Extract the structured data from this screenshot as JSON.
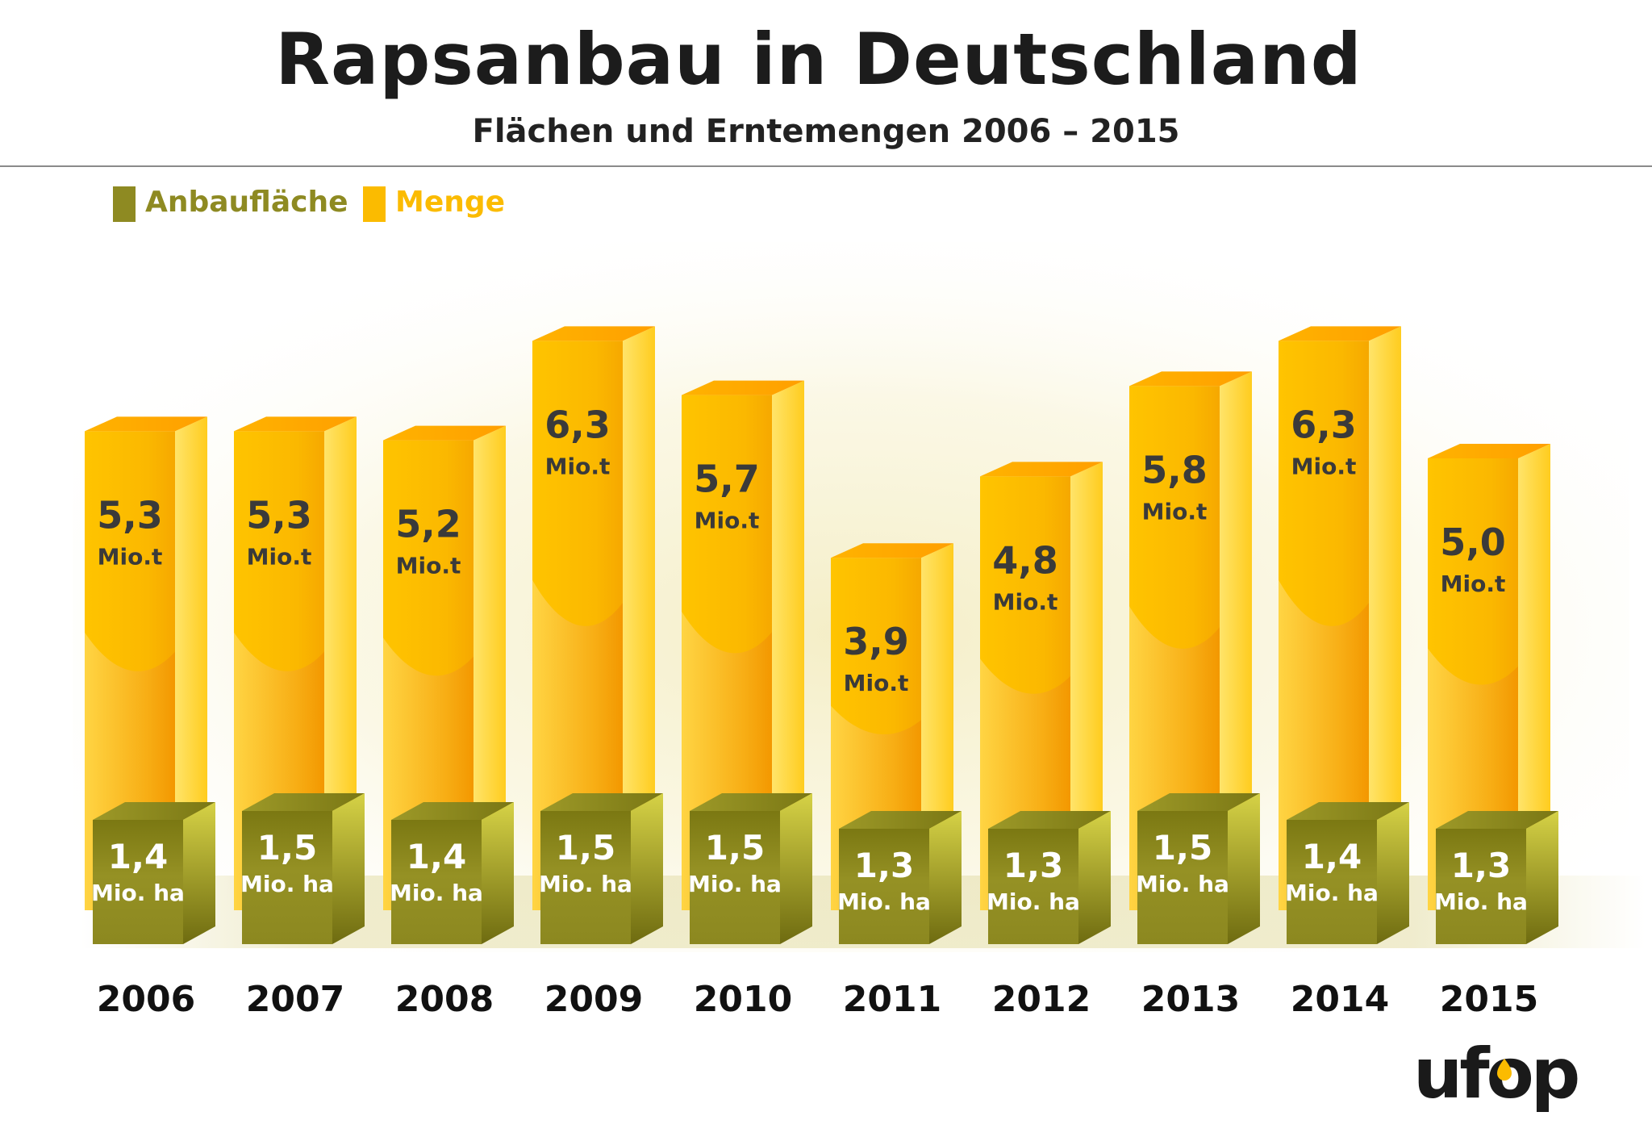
{
  "header": {
    "title": "Rapsanbau in Deutschland",
    "subtitle": "Flächen und Erntemengen 2006 – 2015"
  },
  "legend": {
    "position": "top-left",
    "items": [
      {
        "label": "Anbaufläche",
        "color": "#8e8a22"
      },
      {
        "label": "Menge",
        "color": "#fbbb00"
      }
    ]
  },
  "chart_data": {
    "type": "bar",
    "categories": [
      "2006",
      "2007",
      "2008",
      "2009",
      "2010",
      "2011",
      "2012",
      "2013",
      "2014",
      "2015"
    ],
    "series": [
      {
        "name": "Menge",
        "unit": "Mio.t",
        "values": [
          5.3,
          5.3,
          5.2,
          6.3,
          5.7,
          3.9,
          4.8,
          5.8,
          6.3,
          5.0
        ],
        "labels": [
          "5,3",
          "5,3",
          "5,2",
          "6,3",
          "5,7",
          "3,9",
          "4,8",
          "5,8",
          "6,3",
          "5,0"
        ]
      },
      {
        "name": "Anbaufläche",
        "unit": "Mio. ha",
        "values": [
          1.4,
          1.5,
          1.4,
          1.5,
          1.5,
          1.3,
          1.3,
          1.5,
          1.4,
          1.3
        ],
        "labels": [
          "1,4",
          "1,5",
          "1,4",
          "1,5",
          "1,5",
          "1,3",
          "1,3",
          "1,5",
          "1,4",
          "1,3"
        ]
      }
    ],
    "title": "Rapsanbau in Deutschland",
    "subtitle": "Flächen und Erntemengen 2006 – 2015",
    "grid": false,
    "axes_visible": false
  },
  "colors": {
    "menge_front": "#fbbb00",
    "menge_side": "#ffd84a",
    "menge_top": "#ffb000",
    "flaeche_front": "#8e8a22",
    "flaeche_side": "#b9b431",
    "flaeche_top": "#9c9725",
    "label_dark": "#3a3a3a",
    "label_light": "#ffffff",
    "year_color": "#111111",
    "logo_dark": "#1a1a1a",
    "logo_accent": "#fbbb00"
  },
  "logo": {
    "text": "ufop"
  }
}
